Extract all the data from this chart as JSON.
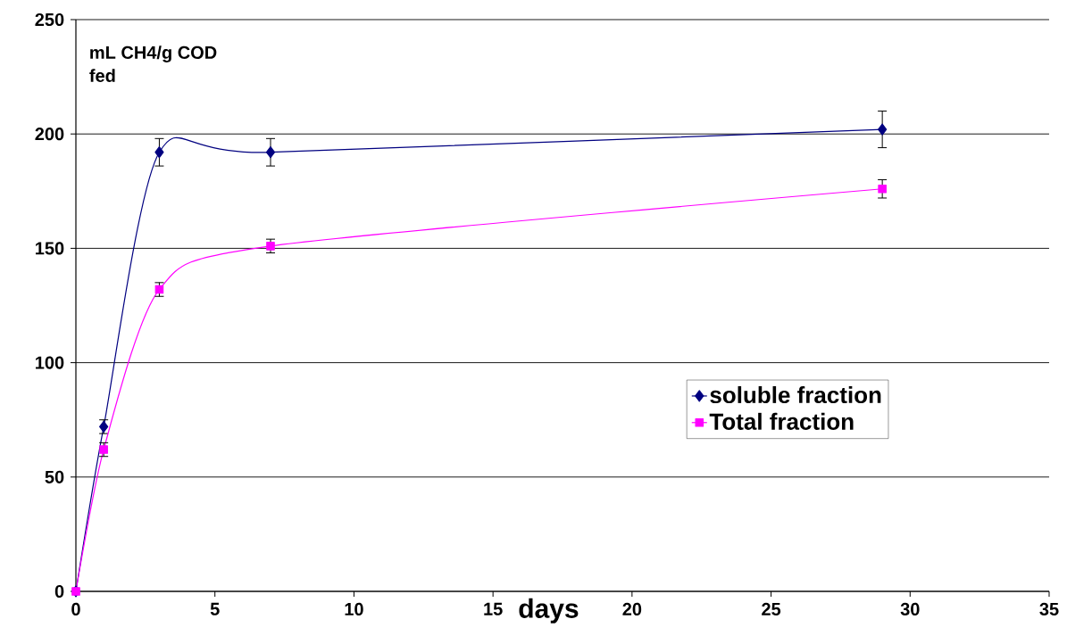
{
  "chart_data": {
    "type": "line",
    "xlabel": "days",
    "ylabel": "mL CH4/g COD fed",
    "x": [
      0,
      1,
      3,
      7,
      29
    ],
    "series": [
      {
        "name": "soluble fraction",
        "color": "#000080",
        "marker": "diamond",
        "values": [
          0,
          72,
          192,
          192,
          202
        ],
        "errors": [
          null,
          3,
          6,
          6,
          8
        ]
      },
      {
        "name": "Total fraction",
        "color": "#ff00ff",
        "marker": "square",
        "values": [
          0,
          62,
          132,
          151,
          176
        ],
        "errors": [
          null,
          3,
          3,
          3,
          4
        ]
      }
    ],
    "xlim": [
      0,
      35
    ],
    "xticks": [
      0,
      5,
      10,
      15,
      20,
      25,
      30,
      35
    ],
    "ylim": [
      0,
      250
    ],
    "yticks": [
      0,
      50,
      100,
      150,
      200,
      250
    ],
    "grid": "y",
    "legend": "right"
  }
}
